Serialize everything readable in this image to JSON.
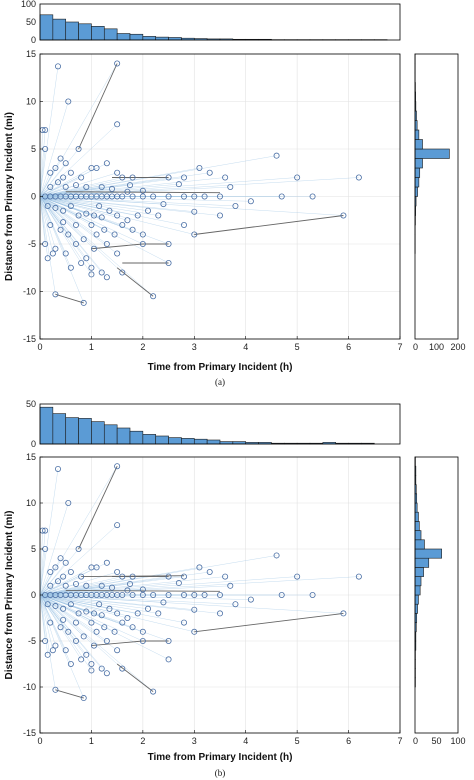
{
  "chart_data": [
    {
      "type": "scatter",
      "panel": "a",
      "caption": "(a)",
      "xlabel": "Time from Primary Incident (h)",
      "ylabel": "Distance from Primary Incident (mi)",
      "xlim": [
        0,
        7
      ],
      "ylim": [
        -15,
        15
      ],
      "xticks": [
        "0",
        "1",
        "2",
        "3",
        "4",
        "5",
        "6",
        "7"
      ],
      "yticks": [
        "-15",
        "-10",
        "-5",
        "0",
        "5",
        "10",
        "15"
      ],
      "grid": true,
      "top_hist": {
        "ylim": [
          0,
          100
        ],
        "yticks": [
          "0",
          "50",
          "100"
        ],
        "bin_width": 0.25,
        "counts": [
          70,
          58,
          50,
          45,
          38,
          31,
          18,
          16,
          10,
          8,
          7,
          5,
          4,
          3,
          3,
          2,
          2,
          2,
          1,
          1,
          1,
          1,
          1,
          1,
          1,
          1,
          1,
          0
        ]
      },
      "right_hist": {
        "xlim": [
          0,
          200
        ],
        "xticks": [
          "0",
          "100",
          "200"
        ],
        "bin_width": 1,
        "counts": [
          0,
          0,
          0,
          0,
          0,
          0,
          0,
          0,
          0,
          1,
          1,
          1,
          2,
          3,
          5,
          12,
          18,
          22,
          35,
          160,
          35,
          18,
          10,
          7,
          4,
          3,
          2,
          1,
          1,
          1
        ]
      },
      "points": [
        [
          0.05,
          7
        ],
        [
          0.1,
          7
        ],
        [
          0.35,
          13.7
        ],
        [
          0.55,
          10
        ],
        [
          0.3,
          -10.3
        ],
        [
          0.85,
          -11.2
        ],
        [
          0.2,
          2.5
        ],
        [
          0.3,
          3
        ],
        [
          0.45,
          2
        ],
        [
          0.5,
          3.5
        ],
        [
          0.6,
          2.5
        ],
        [
          0.8,
          2
        ],
        [
          1.0,
          3
        ],
        [
          1.1,
          3
        ],
        [
          1.3,
          3.5
        ],
        [
          1.5,
          2.5
        ],
        [
          1.6,
          2
        ],
        [
          1.8,
          2
        ],
        [
          0.2,
          1
        ],
        [
          0.35,
          1.5
        ],
        [
          0.5,
          1
        ],
        [
          0.7,
          1.2
        ],
        [
          0.9,
          1
        ],
        [
          1.2,
          1
        ],
        [
          1.4,
          0.8
        ],
        [
          1.7,
          0.5
        ],
        [
          2.0,
          0.6
        ],
        [
          0.1,
          0
        ],
        [
          0.2,
          0
        ],
        [
          0.3,
          0
        ],
        [
          0.4,
          0
        ],
        [
          0.5,
          0
        ],
        [
          0.6,
          0
        ],
        [
          0.7,
          0
        ],
        [
          0.8,
          0
        ],
        [
          0.9,
          0
        ],
        [
          1.0,
          0
        ],
        [
          1.1,
          0
        ],
        [
          1.2,
          0
        ],
        [
          1.3,
          0
        ],
        [
          1.4,
          0
        ],
        [
          1.5,
          0
        ],
        [
          1.6,
          0
        ],
        [
          1.8,
          0
        ],
        [
          2.0,
          0
        ],
        [
          2.2,
          0
        ],
        [
          2.5,
          0
        ],
        [
          2.8,
          0
        ],
        [
          3.0,
          0
        ],
        [
          3.2,
          0
        ],
        [
          3.5,
          0
        ],
        [
          0.15,
          -1
        ],
        [
          0.3,
          -1.2
        ],
        [
          0.45,
          -1.5
        ],
        [
          0.6,
          -1
        ],
        [
          0.75,
          -2
        ],
        [
          0.9,
          -1.8
        ],
        [
          1.05,
          -2
        ],
        [
          1.2,
          -2.2
        ],
        [
          1.35,
          -1.5
        ],
        [
          1.5,
          -2
        ],
        [
          1.7,
          -2.5
        ],
        [
          1.9,
          -2
        ],
        [
          2.1,
          -1.5
        ],
        [
          2.3,
          -2
        ],
        [
          0.2,
          -3
        ],
        [
          0.4,
          -3.5
        ],
        [
          0.55,
          -4
        ],
        [
          0.7,
          -3
        ],
        [
          0.85,
          -4.5
        ],
        [
          1.0,
          -3
        ],
        [
          1.1,
          -4
        ],
        [
          1.25,
          -3.5
        ],
        [
          1.45,
          -4
        ],
        [
          1.6,
          -3
        ],
        [
          1.8,
          -3.5
        ],
        [
          2.0,
          -4
        ],
        [
          0.1,
          -5
        ],
        [
          0.3,
          -5.5
        ],
        [
          0.5,
          -6
        ],
        [
          0.7,
          -5
        ],
        [
          0.9,
          -6.5
        ],
        [
          1.05,
          -5.5
        ],
        [
          1.3,
          -5
        ],
        [
          1.5,
          -6
        ],
        [
          0.6,
          -7.5
        ],
        [
          0.8,
          -7
        ],
        [
          1.0,
          -7.5
        ],
        [
          1.2,
          -8
        ],
        [
          1.3,
          -8.5
        ],
        [
          1.6,
          -8
        ],
        [
          1.0,
          -8.2
        ],
        [
          2.5,
          2
        ],
        [
          2.8,
          2
        ],
        [
          3.1,
          3
        ],
        [
          3.3,
          2.5
        ],
        [
          3.6,
          2
        ],
        [
          4.6,
          4.3
        ],
        [
          4.7,
          0
        ],
        [
          5.0,
          2
        ],
        [
          5.3,
          0
        ],
        [
          6.2,
          2
        ],
        [
          3.0,
          -4
        ],
        [
          5.9,
          -2
        ],
        [
          2.2,
          -10.5
        ],
        [
          2.5,
          -7
        ],
        [
          2.5,
          -5
        ],
        [
          2.0,
          -5
        ],
        [
          2.8,
          -3
        ],
        [
          3.5,
          -2
        ],
        [
          3.8,
          -1
        ],
        [
          0.75,
          5
        ],
        [
          1.5,
          14
        ],
        [
          1.5,
          7.6
        ],
        [
          0.4,
          4
        ],
        [
          0.1,
          5
        ],
        [
          0.25,
          -6
        ],
        [
          0.15,
          -6.5
        ],
        [
          0.45,
          -2.7
        ],
        [
          1.15,
          -1
        ],
        [
          1.75,
          1.2
        ],
        [
          2.4,
          -0.8
        ],
        [
          2.7,
          1.3
        ],
        [
          3.0,
          -1.6
        ],
        [
          3.7,
          1
        ],
        [
          4.1,
          -0.5
        ]
      ],
      "segments": [
        [
          0.75,
          5,
          1.5,
          14
        ],
        [
          2.5,
          -7,
          1.6,
          -7
        ],
        [
          2.2,
          -10.5,
          1.5,
          -7.5
        ],
        [
          3.0,
          -4,
          5.9,
          -2
        ],
        [
          0.85,
          -11.2,
          0.3,
          -10.3
        ],
        [
          2.5,
          -5,
          2.0,
          -5
        ],
        [
          1.4,
          2,
          2.5,
          2
        ],
        [
          0.5,
          0.5,
          3.5,
          0.4
        ],
        [
          2.0,
          -5,
          1.0,
          -5.5
        ]
      ]
    },
    {
      "type": "scatter",
      "panel": "b",
      "caption": "(b)",
      "xlabel": "Time from Primary Incident (h)",
      "ylabel": "Distance from Primary Incident (mi)",
      "xlim": [
        0,
        7
      ],
      "ylim": [
        -15,
        15
      ],
      "xticks": [
        "0",
        "1",
        "2",
        "3",
        "4",
        "5",
        "6",
        "7"
      ],
      "yticks": [
        "-15",
        "-10",
        "-5",
        "0",
        "5",
        "10",
        "15"
      ],
      "grid": true,
      "top_hist": {
        "ylim": [
          0,
          50
        ],
        "yticks": [
          "0",
          "50"
        ],
        "bin_width": 0.25,
        "counts": [
          46,
          38,
          33,
          32,
          28,
          24,
          20,
          16,
          12,
          10,
          8,
          7,
          6,
          5,
          3,
          3,
          2,
          2,
          1,
          1,
          1,
          1,
          2,
          1,
          1,
          1,
          0,
          0
        ]
      },
      "right_hist": {
        "xlim": [
          0,
          100
        ],
        "xticks": [
          "0",
          "50",
          "100"
        ],
        "bin_width": 1,
        "counts": [
          0,
          0,
          0,
          0,
          0,
          1,
          1,
          1,
          1,
          2,
          2,
          3,
          4,
          6,
          8,
          12,
          14,
          20,
          32,
          62,
          22,
          14,
          10,
          8,
          5,
          4,
          3,
          2,
          2,
          1
        ]
      },
      "points": [
        [
          0.05,
          7
        ],
        [
          0.1,
          7
        ],
        [
          0.35,
          13.7
        ],
        [
          0.55,
          10
        ],
        [
          0.3,
          -10.3
        ],
        [
          0.85,
          -11.2
        ],
        [
          0.2,
          2.5
        ],
        [
          0.3,
          3
        ],
        [
          0.45,
          2
        ],
        [
          0.5,
          3.5
        ],
        [
          0.6,
          2.5
        ],
        [
          0.8,
          2
        ],
        [
          1.0,
          3
        ],
        [
          1.1,
          3
        ],
        [
          1.3,
          3.5
        ],
        [
          1.5,
          2.5
        ],
        [
          1.6,
          2
        ],
        [
          1.8,
          2
        ],
        [
          0.2,
          1
        ],
        [
          0.35,
          1.5
        ],
        [
          0.5,
          1
        ],
        [
          0.7,
          1.2
        ],
        [
          0.9,
          1
        ],
        [
          1.2,
          1
        ],
        [
          1.4,
          0.8
        ],
        [
          1.7,
          0.5
        ],
        [
          2.0,
          0.6
        ],
        [
          0.1,
          0
        ],
        [
          0.2,
          0
        ],
        [
          0.3,
          0
        ],
        [
          0.4,
          0
        ],
        [
          0.5,
          0
        ],
        [
          0.6,
          0
        ],
        [
          0.7,
          0
        ],
        [
          0.8,
          0
        ],
        [
          0.9,
          0
        ],
        [
          1.0,
          0
        ],
        [
          1.1,
          0
        ],
        [
          1.2,
          0
        ],
        [
          1.3,
          0
        ],
        [
          1.4,
          0
        ],
        [
          1.5,
          0
        ],
        [
          1.6,
          0
        ],
        [
          1.8,
          0
        ],
        [
          2.0,
          0
        ],
        [
          2.2,
          0
        ],
        [
          2.5,
          0
        ],
        [
          2.8,
          0
        ],
        [
          3.0,
          0
        ],
        [
          3.2,
          0
        ],
        [
          3.5,
          0
        ],
        [
          0.15,
          -1
        ],
        [
          0.3,
          -1.2
        ],
        [
          0.45,
          -1.5
        ],
        [
          0.6,
          -1
        ],
        [
          0.75,
          -2
        ],
        [
          0.9,
          -1.8
        ],
        [
          1.05,
          -2
        ],
        [
          1.2,
          -2.2
        ],
        [
          1.35,
          -1.5
        ],
        [
          1.5,
          -2
        ],
        [
          1.7,
          -2.5
        ],
        [
          1.9,
          -2
        ],
        [
          2.1,
          -1.5
        ],
        [
          2.3,
          -2
        ],
        [
          0.2,
          -3
        ],
        [
          0.4,
          -3.5
        ],
        [
          0.55,
          -4
        ],
        [
          0.7,
          -3
        ],
        [
          0.85,
          -4.5
        ],
        [
          1.0,
          -3
        ],
        [
          1.1,
          -4
        ],
        [
          1.25,
          -3.5
        ],
        [
          1.45,
          -4
        ],
        [
          1.6,
          -3
        ],
        [
          1.8,
          -3.5
        ],
        [
          2.0,
          -4
        ],
        [
          0.1,
          -5
        ],
        [
          0.3,
          -5.5
        ],
        [
          0.5,
          -6
        ],
        [
          0.7,
          -5
        ],
        [
          0.9,
          -6.5
        ],
        [
          1.05,
          -5.5
        ],
        [
          1.3,
          -5
        ],
        [
          1.5,
          -6
        ],
        [
          0.6,
          -7.5
        ],
        [
          0.8,
          -7
        ],
        [
          1.0,
          -7.5
        ],
        [
          1.2,
          -8
        ],
        [
          1.3,
          -8.5
        ],
        [
          1.6,
          -8
        ],
        [
          1.0,
          -8.2
        ],
        [
          2.5,
          2
        ],
        [
          2.8,
          2
        ],
        [
          3.1,
          3
        ],
        [
          3.3,
          2.5
        ],
        [
          3.6,
          2
        ],
        [
          4.6,
          4.3
        ],
        [
          4.7,
          0
        ],
        [
          5.0,
          2
        ],
        [
          5.3,
          0
        ],
        [
          6.2,
          2
        ],
        [
          3.0,
          -4
        ],
        [
          5.9,
          -2
        ],
        [
          2.2,
          -10.5
        ],
        [
          2.5,
          -7
        ],
        [
          2.5,
          -5
        ],
        [
          2.0,
          -5
        ],
        [
          2.8,
          -3
        ],
        [
          3.5,
          -2
        ],
        [
          3.8,
          -1
        ],
        [
          0.75,
          5
        ],
        [
          1.5,
          14
        ],
        [
          1.5,
          7.6
        ],
        [
          0.4,
          4
        ],
        [
          0.1,
          5
        ],
        [
          0.25,
          -6
        ],
        [
          0.15,
          -6.5
        ],
        [
          0.45,
          -2.7
        ],
        [
          1.15,
          -1
        ],
        [
          1.75,
          1.2
        ],
        [
          2.4,
          -0.8
        ],
        [
          2.7,
          1.3
        ],
        [
          3.0,
          -1.6
        ],
        [
          3.7,
          1
        ],
        [
          4.1,
          -0.5
        ]
      ],
      "segments": [
        [
          0.75,
          5,
          1.5,
          14
        ],
        [
          2.2,
          -10.5,
          1.5,
          -7.5
        ],
        [
          3.0,
          -4,
          5.9,
          -2
        ],
        [
          0.85,
          -11.2,
          0.3,
          -10.3
        ],
        [
          2.5,
          -5,
          2.0,
          -5
        ],
        [
          1.4,
          2,
          2.5,
          2
        ],
        [
          0.5,
          0.5,
          3.5,
          0.4
        ],
        [
          2.0,
          -5,
          1.0,
          -5.5
        ],
        [
          0.8,
          2,
          2.8,
          2.1
        ]
      ]
    }
  ]
}
